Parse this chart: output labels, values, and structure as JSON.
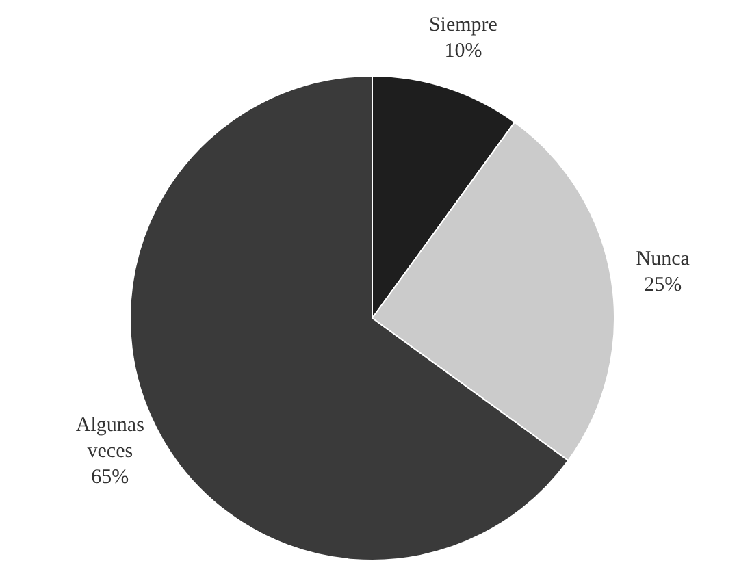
{
  "chart_data": {
    "type": "pie",
    "categories": [
      "Siempre",
      "Nunca",
      "Algunas veces"
    ],
    "values": [
      10,
      25,
      65
    ],
    "value_labels": [
      "10%",
      "25%",
      "65%"
    ],
    "colors": [
      "#1e1e1e",
      "#cbcbcb",
      "#3a3a3a"
    ],
    "legend": false
  }
}
